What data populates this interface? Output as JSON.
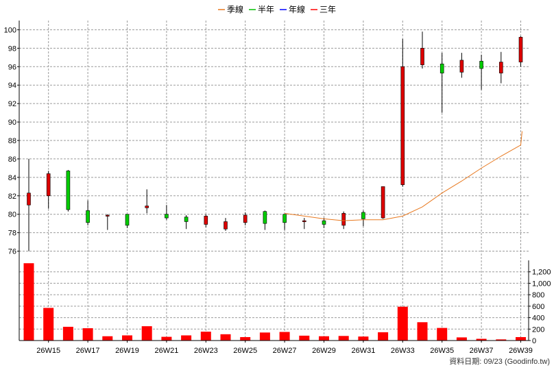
{
  "chart_data": {
    "type": "candlestick",
    "legend": [
      {
        "label": "季線",
        "color": "#e8781e"
      },
      {
        "label": "半年",
        "color": "#00c000"
      },
      {
        "label": "年線",
        "color": "#0000ff"
      },
      {
        "label": "三年",
        "color": "#ff0000"
      }
    ],
    "x_ticks": [
      "26W15",
      "26W17",
      "26W19",
      "26W21",
      "26W23",
      "26W25",
      "26W27",
      "26W29",
      "26W31",
      "26W33",
      "26W35",
      "26W37",
      "26W39"
    ],
    "price_axis": {
      "ylim": [
        75,
        101
      ],
      "ticks": [
        76,
        78,
        80,
        82,
        84,
        86,
        88,
        90,
        92,
        94,
        96,
        98,
        100
      ]
    },
    "volume_axis": {
      "ylim": [
        0,
        1400
      ],
      "ticks": [
        "0",
        "200",
        "400",
        "600",
        "800",
        "1,000",
        "1,200"
      ]
    },
    "weeks": [
      "26W14",
      "26W15",
      "26W16",
      "26W17",
      "26W18",
      "26W19",
      "26W20",
      "26W21",
      "26W22",
      "26W23",
      "26W24",
      "26W25",
      "26W26",
      "26W27",
      "26W28",
      "26W29",
      "26W30",
      "26W31",
      "26W32",
      "26W33",
      "26W34",
      "26W35",
      "26W36",
      "26W37",
      "26W38",
      "26W39"
    ],
    "candles": [
      {
        "o": 81.0,
        "h": 86.0,
        "l": 76.0,
        "c": 82.3
      },
      {
        "o": 82.0,
        "h": 84.7,
        "l": 80.6,
        "c": 84.4
      },
      {
        "o": 84.7,
        "h": 84.8,
        "l": 80.3,
        "c": 80.5
      },
      {
        "o": 80.4,
        "h": 81.5,
        "l": 78.8,
        "c": 79.1
      },
      {
        "o": 79.9,
        "h": 80.0,
        "l": 78.3,
        "c": 79.9
      },
      {
        "o": 80.0,
        "h": 80.0,
        "l": 78.5,
        "c": 78.8
      },
      {
        "o": 80.7,
        "h": 82.7,
        "l": 80.1,
        "c": 80.9
      },
      {
        "o": 80.0,
        "h": 81.0,
        "l": 79.4,
        "c": 79.6
      },
      {
        "o": 79.7,
        "h": 79.9,
        "l": 78.4,
        "c": 79.2
      },
      {
        "o": 78.9,
        "h": 80.0,
        "l": 78.6,
        "c": 79.8
      },
      {
        "o": 78.4,
        "h": 79.6,
        "l": 78.2,
        "c": 79.2
      },
      {
        "o": 79.1,
        "h": 80.2,
        "l": 78.8,
        "c": 79.9
      },
      {
        "o": 80.3,
        "h": 80.4,
        "l": 78.3,
        "c": 79.0
      },
      {
        "o": 80.0,
        "h": 80.0,
        "l": 78.3,
        "c": 79.1
      },
      {
        "o": 79.2,
        "h": 79.6,
        "l": 78.4,
        "c": 79.3
      },
      {
        "o": 79.3,
        "h": 79.6,
        "l": 78.5,
        "c": 78.9
      },
      {
        "o": 78.8,
        "h": 80.3,
        "l": 78.4,
        "c": 80.1
      },
      {
        "o": 80.2,
        "h": 80.4,
        "l": 78.7,
        "c": 79.5
      },
      {
        "o": 79.6,
        "h": 83.0,
        "l": 79.5,
        "c": 83.0
      },
      {
        "o": 83.2,
        "h": 99.0,
        "l": 83.0,
        "c": 96.0
      },
      {
        "o": 96.2,
        "h": 99.8,
        "l": 95.8,
        "c": 98.0
      },
      {
        "o": 96.3,
        "h": 97.5,
        "l": 91.0,
        "c": 95.3
      },
      {
        "o": 95.4,
        "h": 97.5,
        "l": 94.8,
        "c": 96.7
      },
      {
        "o": 96.6,
        "h": 97.3,
        "l": 93.5,
        "c": 95.8
      },
      {
        "o": 95.3,
        "h": 97.6,
        "l": 94.2,
        "c": 96.5
      },
      {
        "o": 96.5,
        "h": 99.3,
        "l": 96.0,
        "c": 99.2
      }
    ],
    "ma_quarter": [
      {
        "week": "26W27",
        "value": 80.1
      },
      {
        "week": "26W28",
        "value": 79.8
      },
      {
        "week": "26W29",
        "value": 79.5
      },
      {
        "week": "26W30",
        "value": 79.3
      },
      {
        "week": "26W31",
        "value": 79.4
      },
      {
        "week": "26W32",
        "value": 79.4
      },
      {
        "week": "26W33",
        "value": 79.8
      },
      {
        "week": "26W34",
        "value": 80.8
      },
      {
        "week": "26W35",
        "value": 82.3
      },
      {
        "week": "26W36",
        "value": 83.6
      },
      {
        "week": "26W37",
        "value": 85.0
      },
      {
        "week": "26W38",
        "value": 86.3
      },
      {
        "week": "26W39",
        "value": 87.5
      },
      {
        "week": "26W39+",
        "value": 89.0
      }
    ],
    "volume": [
      1350,
      570,
      240,
      215,
      75,
      90,
      250,
      65,
      90,
      155,
      110,
      60,
      140,
      150,
      85,
      75,
      80,
      70,
      145,
      590,
      320,
      220,
      55,
      30,
      20,
      60
    ],
    "footer": "資料日期: 09/23  (Goodinfo.tw)"
  },
  "colors": {
    "up": "#dd0000",
    "down": "#00cc00",
    "wick": "#000000",
    "grid": "#9a9a9a",
    "ma": "#e8781e"
  }
}
